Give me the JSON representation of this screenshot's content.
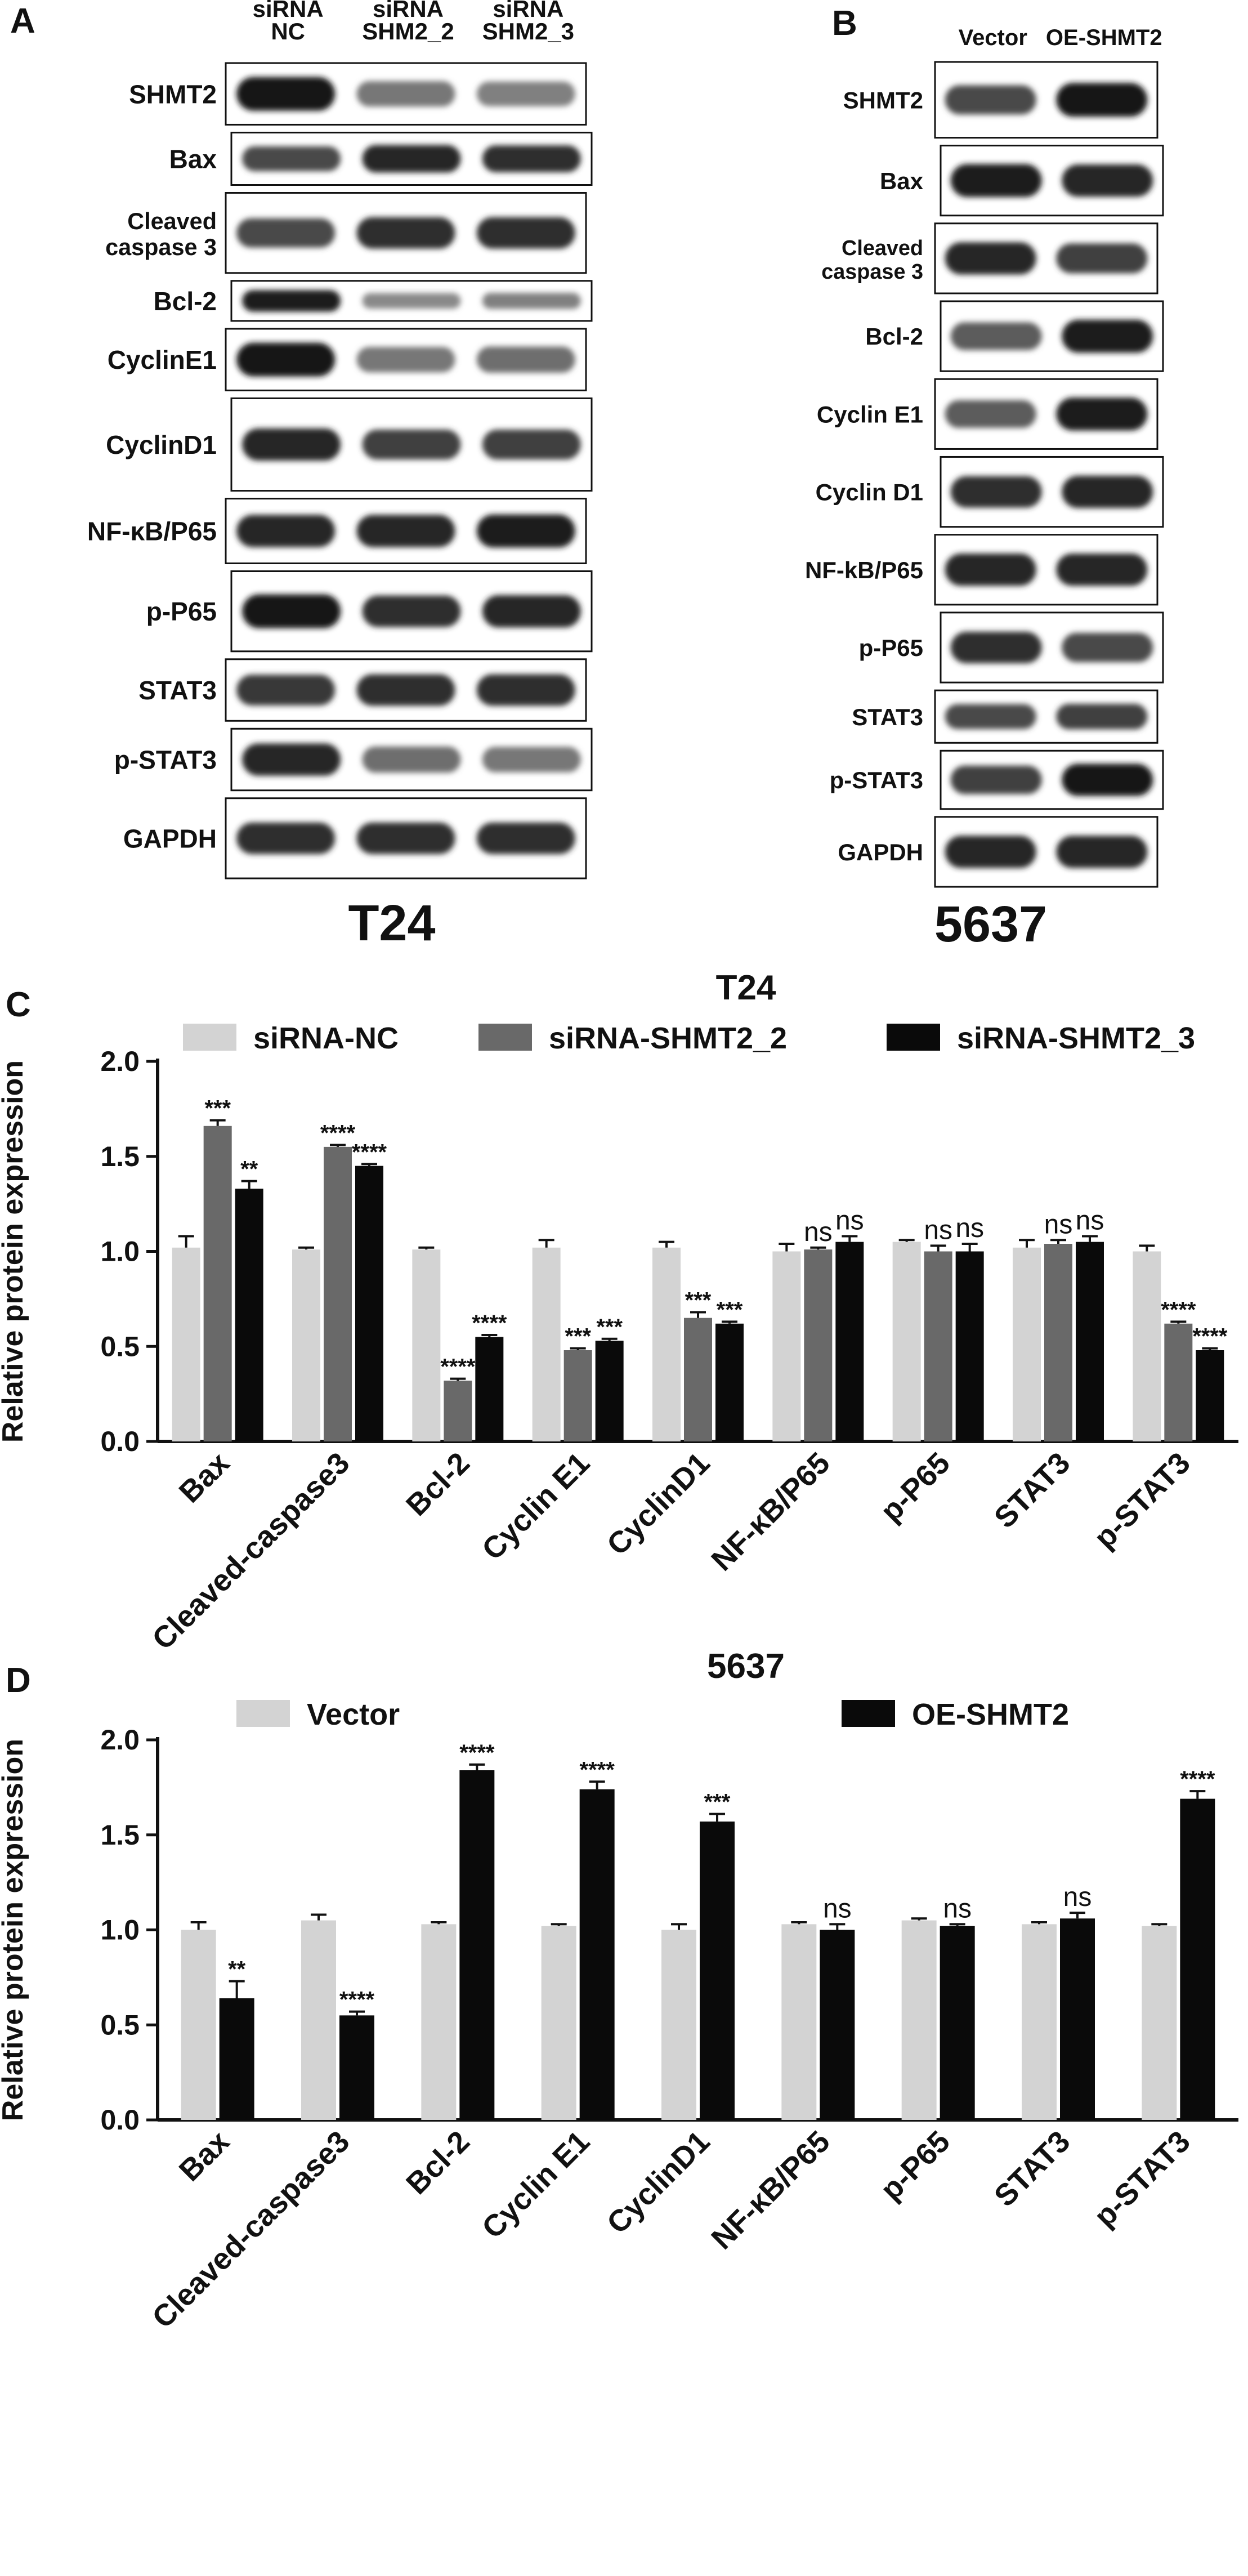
{
  "panel_a": {
    "letter": "A",
    "cell_line": "T24",
    "lanes": [
      [
        "siRNA",
        "NC"
      ],
      [
        "siRNA",
        "SHM2_2"
      ],
      [
        "siRNA",
        "SHM2_3"
      ]
    ],
    "rows": [
      {
        "label": [
          "SHMT2"
        ],
        "bands": [
          1.0,
          0.45,
          0.4
        ],
        "h": 1.0
      },
      {
        "label": [
          "Bax"
        ],
        "bands": [
          0.7,
          0.9,
          0.85
        ],
        "h": 0.85
      },
      {
        "label": [
          "Cleaved",
          "caspase 3"
        ],
        "bands": [
          0.7,
          0.85,
          0.85
        ],
        "h": 1.3
      },
      {
        "label": [
          "Bcl-2"
        ],
        "bands": [
          0.95,
          0.35,
          0.4
        ],
        "h": 0.65
      },
      {
        "label": [
          "CyclinE1"
        ],
        "bands": [
          1.0,
          0.45,
          0.5
        ],
        "h": 1.0
      },
      {
        "label": [
          "CyclinD1"
        ],
        "bands": [
          0.9,
          0.75,
          0.75
        ],
        "h": 1.5
      },
      {
        "label": [
          "NF-κB/P65"
        ],
        "bands": [
          0.9,
          0.9,
          0.95
        ],
        "h": 1.05
      },
      {
        "label": [
          "p-P65"
        ],
        "bands": [
          1.0,
          0.85,
          0.9
        ],
        "h": 1.3
      },
      {
        "label": [
          "STAT3"
        ],
        "bands": [
          0.8,
          0.85,
          0.85
        ],
        "h": 1.0
      },
      {
        "label": [
          "p-STAT3"
        ],
        "bands": [
          0.9,
          0.5,
          0.45
        ],
        "h": 1.0
      },
      {
        "label": [
          "GAPDH"
        ],
        "bands": [
          0.85,
          0.85,
          0.85
        ],
        "h": 1.3
      }
    ]
  },
  "panel_b": {
    "letter": "B",
    "cell_line": "5637",
    "lanes": [
      [
        "Vector"
      ],
      [
        "OE-SHMT2"
      ]
    ],
    "rows": [
      {
        "label": [
          "SHMT2"
        ],
        "bands": [
          0.7,
          1.0
        ],
        "h": 1.3
      },
      {
        "label": [
          "Bax"
        ],
        "bands": [
          0.95,
          0.9
        ],
        "h": 1.2
      },
      {
        "label": [
          "Cleaved",
          "caspase 3"
        ],
        "bands": [
          0.9,
          0.75
        ],
        "h": 1.2
      },
      {
        "label": [
          "Bcl-2"
        ],
        "bands": [
          0.6,
          0.95
        ],
        "h": 1.2
      },
      {
        "label": [
          "Cyclin E1"
        ],
        "bands": [
          0.6,
          0.95
        ],
        "h": 1.2
      },
      {
        "label": [
          "Cyclin D1"
        ],
        "bands": [
          0.85,
          0.9
        ],
        "h": 1.2
      },
      {
        "label": [
          "NF-kB/P65"
        ],
        "bands": [
          0.9,
          0.9
        ],
        "h": 1.2
      },
      {
        "label": [
          "p-P65"
        ],
        "bands": [
          0.85,
          0.7
        ],
        "h": 1.2
      },
      {
        "label": [
          "STAT3"
        ],
        "bands": [
          0.7,
          0.75
        ],
        "h": 0.9
      },
      {
        "label": [
          "p-STAT3"
        ],
        "bands": [
          0.75,
          1.0
        ],
        "h": 1.0
      },
      {
        "label": [
          "GAPDH"
        ],
        "bands": [
          0.9,
          0.9
        ],
        "h": 1.2
      }
    ]
  },
  "colors": {
    "light": "#d3d3d3",
    "mid": "#696969",
    "dark": "#0a0a0a",
    "text": "#111111",
    "band": "#1a1a1a"
  },
  "chart_data": [
    {
      "panel": "C",
      "type": "bar",
      "title": "T24",
      "xlabel": "",
      "ylabel": "Relative protein expression",
      "ylim": [
        0,
        2.0
      ],
      "yticks": [
        "0.0",
        "0.5",
        "1.0",
        "1.5",
        "2.0"
      ],
      "grid": false,
      "legend": "top",
      "categories": [
        "Bax",
        "Cleaved-caspase3",
        "Bcl-2",
        "Cyclin E1",
        "CyclinD1",
        "NF-κB/P65",
        "p-P65",
        "STAT3",
        "p-STAT3"
      ],
      "series": [
        {
          "name": "siRNA-NC",
          "color": "#d3d3d3",
          "values": [
            1.02,
            1.01,
            1.01,
            1.02,
            1.02,
            1.0,
            1.05,
            1.02,
            1.0
          ],
          "errors": [
            0.06,
            0.01,
            0.01,
            0.04,
            0.03,
            0.04,
            0.01,
            0.04,
            0.03
          ],
          "sig": [
            "",
            "",
            "",
            "",
            "",
            "",
            "",
            "",
            ""
          ]
        },
        {
          "name": "siRNA-SHMT2_2",
          "color": "#696969",
          "values": [
            1.66,
            1.55,
            0.32,
            0.48,
            0.65,
            1.01,
            1.0,
            1.04,
            0.62
          ],
          "errors": [
            0.03,
            0.01,
            0.01,
            0.01,
            0.03,
            0.01,
            0.03,
            0.02,
            0.01
          ],
          "sig": [
            "***",
            "****",
            "****",
            "***",
            "***",
            "ns",
            "ns",
            "ns",
            "****"
          ]
        },
        {
          "name": "siRNA-SHMT2_3",
          "color": "#0a0a0a",
          "values": [
            1.33,
            1.45,
            0.55,
            0.53,
            0.62,
            1.05,
            1.0,
            1.05,
            0.48
          ],
          "errors": [
            0.04,
            0.01,
            0.01,
            0.01,
            0.01,
            0.03,
            0.04,
            0.03,
            0.01
          ],
          "sig": [
            "**",
            "****",
            "****",
            "***",
            "***",
            "ns",
            "ns",
            "ns",
            "****"
          ]
        }
      ]
    },
    {
      "panel": "D",
      "type": "bar",
      "title": "5637",
      "xlabel": "",
      "ylabel": "Relative protein expression",
      "ylim": [
        0,
        2.0
      ],
      "yticks": [
        "0.0",
        "0.5",
        "1.0",
        "1.5",
        "2.0"
      ],
      "grid": false,
      "legend": "top",
      "categories": [
        "Bax",
        "Cleaved-caspase3",
        "Bcl-2",
        "Cyclin E1",
        "CyclinD1",
        "NF-κB/P65",
        "p-P65",
        "STAT3",
        "p-STAT3"
      ],
      "series": [
        {
          "name": "Vector",
          "color": "#d3d3d3",
          "values": [
            1.0,
            1.05,
            1.03,
            1.02,
            1.0,
            1.03,
            1.05,
            1.03,
            1.02
          ],
          "errors": [
            0.04,
            0.03,
            0.01,
            0.01,
            0.03,
            0.01,
            0.01,
            0.01,
            0.01
          ],
          "sig": [
            "",
            "",
            "",
            "",
            "",
            "",
            "",
            "",
            ""
          ]
        },
        {
          "name": "OE-SHMT2",
          "color": "#0a0a0a",
          "values": [
            0.64,
            0.55,
            1.84,
            1.74,
            1.57,
            1.0,
            1.02,
            1.06,
            1.69
          ],
          "errors": [
            0.09,
            0.02,
            0.03,
            0.04,
            0.04,
            0.03,
            0.01,
            0.03,
            0.04
          ],
          "sig": [
            "**",
            "****",
            "****",
            "****",
            "***",
            "ns",
            "ns",
            "ns",
            "****"
          ]
        }
      ]
    }
  ]
}
